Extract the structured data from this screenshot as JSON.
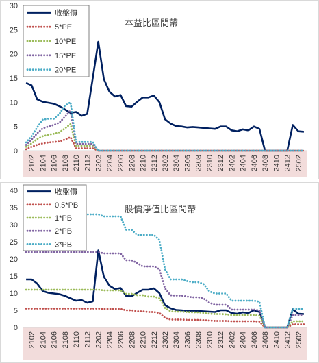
{
  "chart_data": [
    {
      "type": "line",
      "title": "本益比區間帶",
      "x": [
        "2101",
        "2102",
        "2103",
        "2104",
        "2105",
        "2106",
        "2107",
        "2108",
        "2109",
        "2110",
        "2111",
        "2112",
        "2201",
        "2202",
        "2203",
        "2204",
        "2205",
        "2206",
        "2207",
        "2208",
        "2209",
        "2210",
        "2211",
        "2212",
        "2301",
        "2302",
        "2303",
        "2304",
        "2305",
        "2306",
        "2307",
        "2308",
        "2309",
        "2310",
        "2311",
        "2312",
        "2401",
        "2402",
        "2403",
        "2404",
        "2405",
        "2406",
        "2407",
        "2408",
        "2409",
        "2410",
        "2411",
        "2412",
        "2501",
        "2502",
        "2503"
      ],
      "x_tick_labels": [
        "2102",
        "2104",
        "2106",
        "2108",
        "2110",
        "2112",
        "2202",
        "2204",
        "2206",
        "2208",
        "2210",
        "2212",
        "2302",
        "2304",
        "2306",
        "2308",
        "2310",
        "2312",
        "2402",
        "2404",
        "2406",
        "2408",
        "2410",
        "2412",
        "2502"
      ],
      "y_ticks": [
        "0",
        "5",
        "10",
        "15",
        "20",
        "25",
        "30"
      ],
      "ylim": [
        0,
        30
      ],
      "legend_position": "top-left",
      "series": [
        {
          "name": "收盤價",
          "color": "#002060",
          "style": "solid",
          "values": [
            14,
            13.5,
            10.6,
            10.1,
            9.9,
            9.7,
            9.2,
            8.5,
            7.8,
            8,
            7.2,
            7.6,
            15,
            22.5,
            14.8,
            12.2,
            11.2,
            11.5,
            9.2,
            9.1,
            10.1,
            11,
            11,
            11.4,
            10,
            6.5,
            5.6,
            5.1,
            5,
            4.8,
            4.9,
            4.8,
            4.7,
            4.6,
            4.5,
            5,
            5,
            4.2,
            4,
            4.4,
            4.2,
            5,
            4.5,
            0,
            0,
            0,
            0,
            0,
            5.3,
            4,
            3.9
          ]
        },
        {
          "name": "5*PE",
          "color": "#c0504d",
          "style": "dotted",
          "values": [
            0.3,
            0.8,
            1.2,
            1.5,
            1.7,
            1.8,
            1.9,
            2.3,
            2.8,
            0.5,
            0.5,
            0.5,
            0.5,
            0,
            0,
            0,
            0,
            0,
            0,
            0,
            0,
            0,
            0,
            0,
            0,
            0,
            0,
            0,
            0,
            0,
            0,
            0,
            0,
            0,
            0,
            0,
            0,
            0,
            0,
            0,
            0,
            0,
            0,
            0,
            0,
            0,
            0,
            0,
            0,
            0,
            0
          ]
        },
        {
          "name": "10*PE",
          "color": "#9bbb59",
          "style": "dotted",
          "values": [
            0.8,
            1.5,
            2.4,
            3,
            3.3,
            3.5,
            3.8,
            4.6,
            5.5,
            1,
            1,
            1,
            1,
            0,
            0,
            0,
            0,
            0,
            0,
            0,
            0,
            0,
            0,
            0,
            0,
            0,
            0,
            0,
            0,
            0,
            0,
            0,
            0,
            0,
            0,
            0,
            0,
            0,
            0,
            0,
            0,
            0,
            0,
            0,
            0,
            0,
            0,
            0,
            0,
            0,
            0
          ]
        },
        {
          "name": "15*PE",
          "color": "#8064a2",
          "style": "dotted",
          "values": [
            1.2,
            2.3,
            3.6,
            4.6,
            5,
            5.3,
            5.8,
            7,
            8.3,
            1.4,
            1.4,
            1.4,
            1.4,
            0,
            0,
            0,
            0,
            0,
            0,
            0,
            0,
            0,
            0,
            0,
            0,
            0,
            0,
            0,
            0,
            0,
            0,
            0,
            0,
            0,
            0,
            0,
            0,
            0,
            0,
            0,
            0,
            0,
            0,
            0,
            0,
            0,
            0,
            0,
            0,
            0,
            0
          ]
        },
        {
          "name": "20*PE",
          "color": "#4bacc6",
          "style": "dotted",
          "values": [
            1.7,
            3,
            4.8,
            6.4,
            6.6,
            6.6,
            7.6,
            9.3,
            10,
            1.8,
            1.8,
            1.8,
            1.8,
            0,
            0,
            0,
            0,
            0,
            0,
            0,
            0,
            0,
            0,
            0,
            0,
            0,
            0,
            0,
            0,
            0,
            0,
            0,
            0,
            0,
            0,
            0,
            0,
            0,
            0,
            0,
            0,
            0,
            0,
            0,
            0,
            0,
            0,
            0,
            0,
            0,
            0
          ]
        }
      ]
    },
    {
      "type": "line",
      "title": "股價淨值比區間帶",
      "x": [
        "2101",
        "2102",
        "2103",
        "2104",
        "2105",
        "2106",
        "2107",
        "2108",
        "2109",
        "2110",
        "2111",
        "2112",
        "2201",
        "2202",
        "2203",
        "2204",
        "2205",
        "2206",
        "2207",
        "2208",
        "2209",
        "2210",
        "2211",
        "2212",
        "2301",
        "2302",
        "2303",
        "2304",
        "2305",
        "2306",
        "2307",
        "2308",
        "2309",
        "2310",
        "2311",
        "2312",
        "2401",
        "2402",
        "2403",
        "2404",
        "2405",
        "2406",
        "2407",
        "2408",
        "2409",
        "2410",
        "2411",
        "2412",
        "2501",
        "2502",
        "2503"
      ],
      "x_tick_labels": [
        "2102",
        "2104",
        "2106",
        "2108",
        "2110",
        "2112",
        "2202",
        "2204",
        "2206",
        "2208",
        "2210",
        "2212",
        "2302",
        "2304",
        "2306",
        "2308",
        "2310",
        "2312",
        "2402",
        "2404",
        "2406",
        "2408",
        "2410",
        "2412",
        "2502"
      ],
      "y_ticks": [
        "0",
        "5",
        "10",
        "15",
        "20",
        "25",
        "30",
        "35",
        "40"
      ],
      "ylim": [
        0,
        40
      ],
      "legend_position": "top-left",
      "series": [
        {
          "name": "收盤價",
          "color": "#002060",
          "style": "solid",
          "values": [
            14,
            14,
            12.8,
            10.6,
            10.1,
            9.9,
            9.7,
            9.2,
            8.5,
            7.8,
            8,
            7.2,
            7.6,
            22.5,
            14.8,
            12.2,
            11.2,
            11.5,
            9.2,
            9.1,
            10.1,
            11,
            11,
            11.4,
            10,
            6.5,
            5.6,
            5.1,
            5,
            4.8,
            4.9,
            4.8,
            4.7,
            4.6,
            4.5,
            5,
            5,
            4.2,
            4,
            4.4,
            4.2,
            5,
            4.5,
            0,
            0,
            0,
            0,
            0,
            5.3,
            4,
            3.9
          ]
        },
        {
          "name": "0.5*PB",
          "color": "#c0504d",
          "style": "dotted",
          "values": [
            5.5,
            5.5,
            5.5,
            5.5,
            5.5,
            5.5,
            5.5,
            5.5,
            5.5,
            5.5,
            5.5,
            5.5,
            5.5,
            5.5,
            5.4,
            5.4,
            5.4,
            5.4,
            5,
            5,
            4.7,
            4.7,
            4.5,
            4.5,
            4.2,
            2.8,
            2.3,
            2.3,
            2.3,
            2.2,
            2.2,
            2.2,
            2.1,
            2,
            1.9,
            1.9,
            1.9,
            1.8,
            1.8,
            1.8,
            1.8,
            1.8,
            1.7,
            0,
            0,
            0,
            0,
            0,
            0.9,
            0.9,
            0.9
          ]
        },
        {
          "name": "1*PB",
          "color": "#9bbb59",
          "style": "dotted",
          "values": [
            11,
            11,
            11,
            11,
            11,
            11,
            11,
            11,
            11,
            11,
            11,
            11,
            11,
            11,
            10.8,
            10.8,
            10.8,
            10.8,
            9.8,
            9.8,
            9.4,
            9.4,
            9,
            9,
            8.5,
            5.7,
            4.7,
            4.6,
            4.6,
            4.5,
            4.4,
            4.4,
            4.2,
            4,
            3.9,
            3.9,
            3.8,
            3.6,
            3.6,
            3.6,
            3.6,
            3.6,
            3.4,
            0,
            0,
            0,
            0,
            0,
            1.8,
            1.8,
            1.8
          ]
        },
        {
          "name": "2*PB",
          "color": "#8064a2",
          "style": "dotted",
          "values": [
            22,
            22,
            22,
            22,
            22,
            22,
            22,
            22,
            22,
            22,
            22,
            22,
            22,
            22,
            21.6,
            21.6,
            21.6,
            21.6,
            19.6,
            19.6,
            18.8,
            17.8,
            17.8,
            17.8,
            17,
            11.4,
            9.4,
            9.3,
            9.3,
            9,
            8.8,
            8.8,
            8.4,
            7.2,
            6.6,
            6.6,
            6.6,
            5.2,
            5.2,
            5.2,
            5.2,
            5.2,
            5,
            0,
            0,
            0,
            0,
            0,
            3.6,
            3.6,
            3.6
          ]
        },
        {
          "name": "3*PB",
          "color": "#4bacc6",
          "style": "dotted",
          "values": [
            33,
            33,
            33,
            33,
            33,
            33,
            33,
            33,
            33,
            33,
            33,
            33,
            33,
            33,
            32.4,
            32.4,
            32.4,
            32.4,
            28.5,
            28.5,
            27,
            27,
            27,
            27,
            25.5,
            17,
            14,
            14,
            14,
            13.5,
            13.2,
            13.2,
            12.6,
            10.5,
            9.9,
            9.9,
            9.9,
            7.8,
            7.8,
            7.8,
            7.8,
            7.8,
            7.5,
            0,
            0,
            0,
            0,
            0,
            5.4,
            5.4,
            5.4
          ]
        }
      ]
    }
  ]
}
